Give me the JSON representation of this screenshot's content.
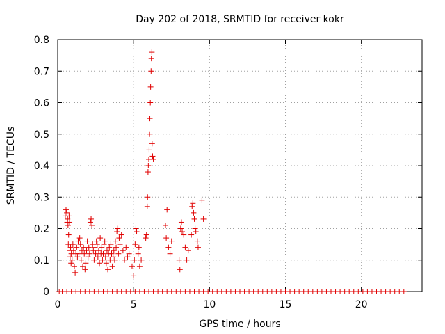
{
  "chart_data": {
    "type": "scatter",
    "title": "Day 202 of 2018, SRMTID for receiver kokr",
    "xlabel": "GPS time / hours",
    "ylabel": "SRMTID / TECUs",
    "xlim": [
      0,
      24
    ],
    "ylim": [
      0,
      0.8
    ],
    "xticks": [
      0,
      5,
      10,
      15,
      20
    ],
    "yticks": [
      0,
      0.1,
      0.2,
      0.3,
      0.4,
      0.5,
      0.6,
      0.7,
      0.8
    ],
    "xtick_labels": [
      "0",
      "5",
      "10",
      "15",
      "20"
    ],
    "ytick_labels": [
      "0",
      "0.1",
      "0.2",
      "0.3",
      "0.4",
      "0.5",
      "0.6",
      "0.7",
      "0.8"
    ],
    "grid": true,
    "marker": "+",
    "series_color": "#e00000",
    "series": [
      {
        "name": "SRMTID",
        "points": [
          [
            0.5,
            0.24
          ],
          [
            0.55,
            0.26
          ],
          [
            0.6,
            0.25
          ],
          [
            0.62,
            0.22
          ],
          [
            0.65,
            0.23
          ],
          [
            0.68,
            0.21
          ],
          [
            0.7,
            0.15
          ],
          [
            0.72,
            0.18
          ],
          [
            0.75,
            0.24
          ],
          [
            0.78,
            0.22
          ],
          [
            0.8,
            0.13
          ],
          [
            0.82,
            0.11
          ],
          [
            0.85,
            0.14
          ],
          [
            0.88,
            0.09
          ],
          [
            0.9,
            0.12
          ],
          [
            0.95,
            0.1
          ],
          [
            1.0,
            0.15
          ],
          [
            1.05,
            0.13
          ],
          [
            1.1,
            0.08
          ],
          [
            1.15,
            0.06
          ],
          [
            1.2,
            0.12
          ],
          [
            1.25,
            0.14
          ],
          [
            1.3,
            0.11
          ],
          [
            1.35,
            0.16
          ],
          [
            1.4,
            0.12
          ],
          [
            1.45,
            0.17
          ],
          [
            1.5,
            0.15
          ],
          [
            1.55,
            0.1
          ],
          [
            1.6,
            0.13
          ],
          [
            1.65,
            0.08
          ],
          [
            1.7,
            0.14
          ],
          [
            1.75,
            0.12
          ],
          [
            1.8,
            0.07
          ],
          [
            1.85,
            0.09
          ],
          [
            1.9,
            0.13
          ],
          [
            1.95,
            0.16
          ],
          [
            2.0,
            0.11
          ],
          [
            2.05,
            0.14
          ],
          [
            2.1,
            0.12
          ],
          [
            2.15,
            0.22
          ],
          [
            2.2,
            0.23
          ],
          [
            2.25,
            0.21
          ],
          [
            2.3,
            0.15
          ],
          [
            2.35,
            0.13
          ],
          [
            2.4,
            0.1
          ],
          [
            2.45,
            0.14
          ],
          [
            2.5,
            0.12
          ],
          [
            2.55,
            0.16
          ],
          [
            2.6,
            0.15
          ],
          [
            2.65,
            0.11
          ],
          [
            2.7,
            0.13
          ],
          [
            2.75,
            0.09
          ],
          [
            2.8,
            0.17
          ],
          [
            2.85,
            0.12
          ],
          [
            2.9,
            0.14
          ],
          [
            2.95,
            0.1
          ],
          [
            3.0,
            0.12
          ],
          [
            3.05,
            0.15
          ],
          [
            3.1,
            0.16
          ],
          [
            3.15,
            0.11
          ],
          [
            3.2,
            0.09
          ],
          [
            3.25,
            0.13
          ],
          [
            3.3,
            0.07
          ],
          [
            3.35,
            0.12
          ],
          [
            3.4,
            0.14
          ],
          [
            3.45,
            0.1
          ],
          [
            3.5,
            0.15
          ],
          [
            3.55,
            0.12
          ],
          [
            3.6,
            0.08
          ],
          [
            3.65,
            0.11
          ],
          [
            3.7,
            0.13
          ],
          [
            3.75,
            0.1
          ],
          [
            3.8,
            0.16
          ],
          [
            3.85,
            0.14
          ],
          [
            3.9,
            0.19
          ],
          [
            3.95,
            0.2
          ],
          [
            4.0,
            0.12
          ],
          [
            4.05,
            0.17
          ],
          [
            4.1,
            0.15
          ],
          [
            4.2,
            0.18
          ],
          [
            4.3,
            0.13
          ],
          [
            4.4,
            0.1
          ],
          [
            4.5,
            0.14
          ],
          [
            4.6,
            0.11
          ],
          [
            4.7,
            0.12
          ],
          [
            4.9,
            0.08
          ],
          [
            5.0,
            0.05
          ],
          [
            5.05,
            0.1
          ],
          [
            5.1,
            0.15
          ],
          [
            5.15,
            0.2
          ],
          [
            5.2,
            0.19
          ],
          [
            5.3,
            0.12
          ],
          [
            5.35,
            0.14
          ],
          [
            5.4,
            0.08
          ],
          [
            5.5,
            0.1
          ],
          [
            5.8,
            0.17
          ],
          [
            5.85,
            0.18
          ],
          [
            5.9,
            0.27
          ],
          [
            5.92,
            0.3
          ],
          [
            5.95,
            0.38
          ],
          [
            5.97,
            0.4
          ],
          [
            6.0,
            0.42
          ],
          [
            6.02,
            0.45
          ],
          [
            6.05,
            0.5
          ],
          [
            6.07,
            0.55
          ],
          [
            6.1,
            0.6
          ],
          [
            6.12,
            0.65
          ],
          [
            6.15,
            0.7
          ],
          [
            6.17,
            0.74
          ],
          [
            6.2,
            0.76
          ],
          [
            6.22,
            0.47
          ],
          [
            6.25,
            0.43
          ],
          [
            6.3,
            0.42
          ],
          [
            7.1,
            0.21
          ],
          [
            7.15,
            0.17
          ],
          [
            7.2,
            0.26
          ],
          [
            7.3,
            0.14
          ],
          [
            7.4,
            0.12
          ],
          [
            7.5,
            0.16
          ],
          [
            8.0,
            0.1
          ],
          [
            8.05,
            0.07
          ],
          [
            8.1,
            0.2
          ],
          [
            8.15,
            0.22
          ],
          [
            8.2,
            0.19
          ],
          [
            8.3,
            0.18
          ],
          [
            8.4,
            0.14
          ],
          [
            8.5,
            0.1
          ],
          [
            8.6,
            0.13
          ],
          [
            8.8,
            0.18
          ],
          [
            8.85,
            0.27
          ],
          [
            8.9,
            0.28
          ],
          [
            8.95,
            0.25
          ],
          [
            9.0,
            0.23
          ],
          [
            9.05,
            0.2
          ],
          [
            9.1,
            0.19
          ],
          [
            9.2,
            0.16
          ],
          [
            9.25,
            0.14
          ],
          [
            9.5,
            0.29
          ],
          [
            9.6,
            0.23
          ],
          [
            0.1,
            0
          ],
          [
            0.3,
            0
          ],
          [
            0.6,
            0
          ],
          [
            0.9,
            0
          ],
          [
            1.2,
            0
          ],
          [
            1.5,
            0
          ],
          [
            1.8,
            0
          ],
          [
            2.1,
            0
          ],
          [
            2.4,
            0
          ],
          [
            2.7,
            0
          ],
          [
            3.0,
            0
          ],
          [
            3.3,
            0
          ],
          [
            3.6,
            0
          ],
          [
            3.9,
            0
          ],
          [
            4.2,
            0
          ],
          [
            4.5,
            0
          ],
          [
            4.8,
            0
          ],
          [
            5.1,
            0
          ],
          [
            5.4,
            0
          ],
          [
            5.7,
            0
          ],
          [
            6.0,
            0
          ],
          [
            6.3,
            0
          ],
          [
            6.6,
            0
          ],
          [
            6.9,
            0
          ],
          [
            7.2,
            0
          ],
          [
            7.5,
            0
          ],
          [
            7.8,
            0
          ],
          [
            8.1,
            0
          ],
          [
            8.4,
            0
          ],
          [
            8.7,
            0
          ],
          [
            9.0,
            0
          ],
          [
            9.3,
            0
          ],
          [
            9.6,
            0
          ],
          [
            9.9,
            0
          ],
          [
            10.2,
            0
          ],
          [
            10.5,
            0
          ],
          [
            10.8,
            0
          ],
          [
            11.1,
            0
          ],
          [
            11.4,
            0
          ],
          [
            11.7,
            0
          ],
          [
            12.0,
            0
          ],
          [
            12.3,
            0
          ],
          [
            12.6,
            0
          ],
          [
            12.9,
            0
          ],
          [
            13.2,
            0
          ],
          [
            13.5,
            0
          ],
          [
            13.8,
            0
          ],
          [
            14.1,
            0
          ],
          [
            14.4,
            0
          ],
          [
            14.7,
            0
          ],
          [
            15.0,
            0
          ],
          [
            15.3,
            0
          ],
          [
            15.6,
            0
          ],
          [
            15.9,
            0
          ],
          [
            16.2,
            0
          ],
          [
            16.5,
            0
          ],
          [
            16.8,
            0
          ],
          [
            17.1,
            0
          ],
          [
            17.4,
            0
          ],
          [
            17.7,
            0
          ],
          [
            18.0,
            0
          ],
          [
            18.3,
            0
          ],
          [
            18.6,
            0
          ],
          [
            18.9,
            0
          ],
          [
            19.2,
            0
          ],
          [
            19.5,
            0
          ],
          [
            19.8,
            0
          ],
          [
            20.1,
            0
          ],
          [
            20.4,
            0
          ],
          [
            20.7,
            0
          ],
          [
            21.0,
            0
          ],
          [
            21.3,
            0
          ],
          [
            21.6,
            0
          ],
          [
            21.9,
            0
          ],
          [
            22.2,
            0
          ],
          [
            22.5,
            0
          ],
          [
            22.8,
            0
          ]
        ]
      }
    ]
  }
}
